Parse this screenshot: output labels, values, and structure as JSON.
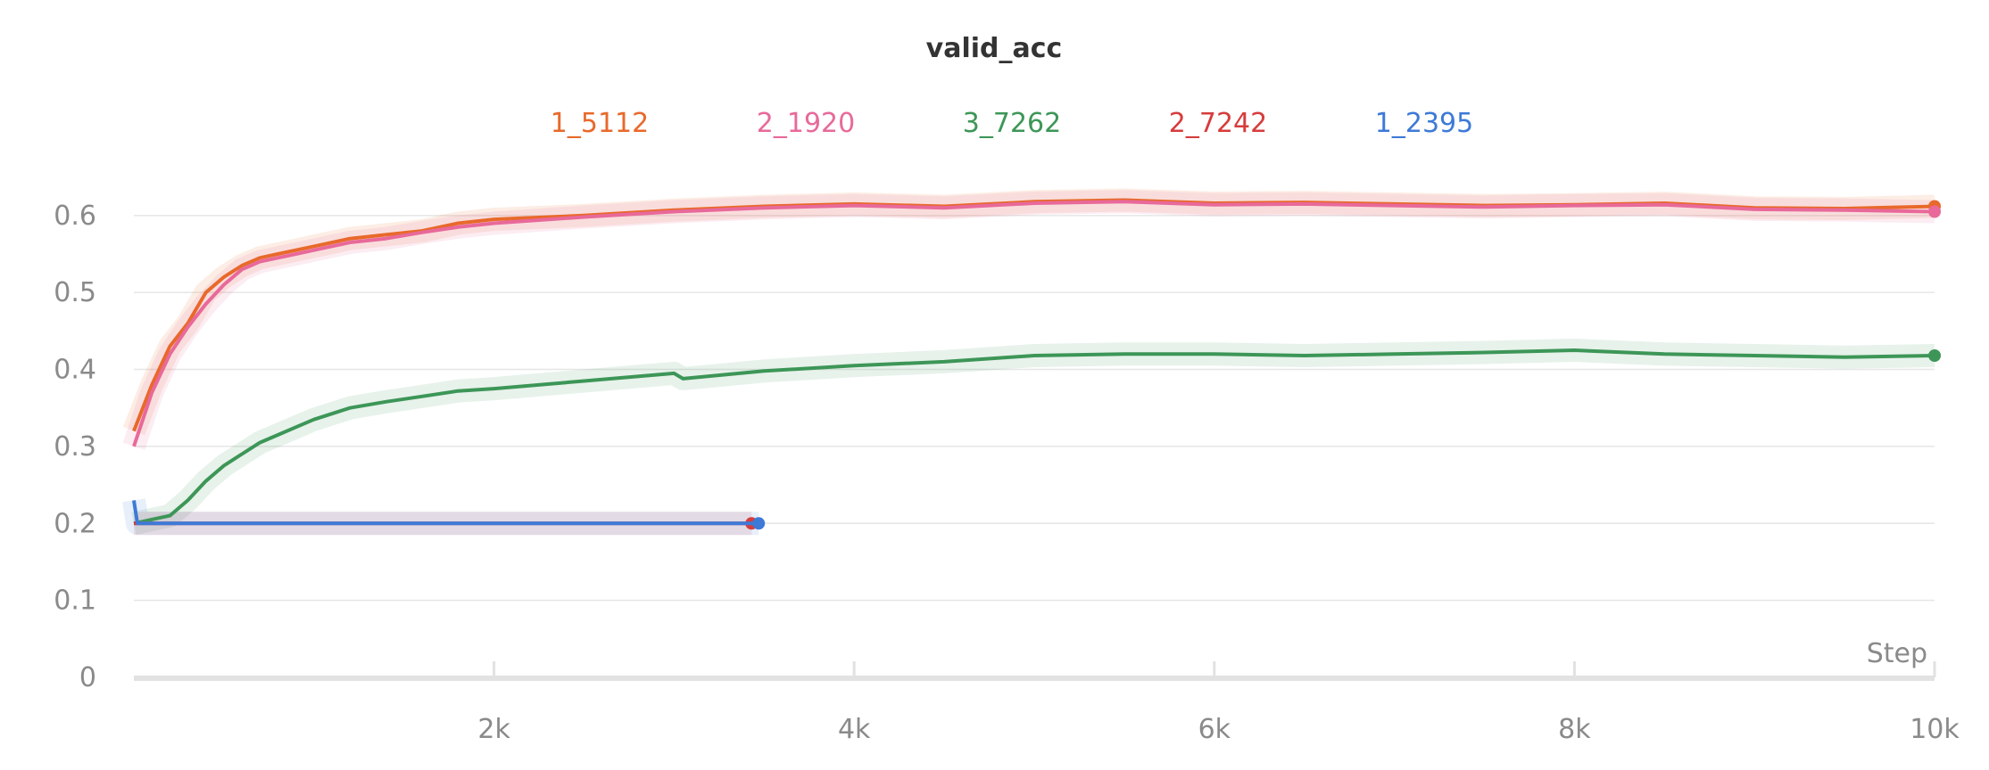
{
  "chart_data": {
    "type": "line",
    "title": "valid_acc",
    "xlabel": "Step",
    "ylabel": "",
    "xlim": [
      0,
      10000
    ],
    "ylim": [
      0,
      0.66
    ],
    "x_ticks": [
      2000,
      4000,
      6000,
      8000,
      10000
    ],
    "x_tick_labels": [
      "2k",
      "4k",
      "6k",
      "8k",
      "10k"
    ],
    "y_ticks": [
      0,
      0.1,
      0.2,
      0.3,
      0.4,
      0.5,
      0.6
    ],
    "y_tick_labels": [
      "0",
      "0.1",
      "0.2",
      "0.3",
      "0.4",
      "0.5",
      "0.6"
    ],
    "grid": true,
    "legend_position": "top",
    "series": [
      {
        "name": "1_5112",
        "color": "#e8692b",
        "x": [
          0,
          100,
          200,
          300,
          400,
          500,
          600,
          700,
          800,
          900,
          1000,
          1200,
          1400,
          1600,
          1800,
          2000,
          2500,
          3000,
          3500,
          4000,
          4500,
          5000,
          5500,
          6000,
          6500,
          7000,
          7500,
          8000,
          8500,
          9000,
          9500,
          10000
        ],
        "values": [
          0.32,
          0.38,
          0.43,
          0.46,
          0.5,
          0.52,
          0.535,
          0.545,
          0.55,
          0.555,
          0.56,
          0.57,
          0.575,
          0.58,
          0.59,
          0.595,
          0.6,
          0.607,
          0.612,
          0.615,
          0.612,
          0.618,
          0.62,
          0.616,
          0.617,
          0.615,
          0.613,
          0.614,
          0.616,
          0.61,
          0.609,
          0.612
        ]
      },
      {
        "name": "2_1920",
        "color": "#e8699a",
        "x": [
          0,
          100,
          200,
          300,
          400,
          500,
          600,
          700,
          800,
          900,
          1000,
          1200,
          1400,
          1600,
          1800,
          2000,
          2500,
          3000,
          3500,
          4000,
          4500,
          5000,
          5500,
          6000,
          6500,
          7000,
          7500,
          8000,
          8500,
          9000,
          9500,
          10000
        ],
        "values": [
          0.3,
          0.37,
          0.42,
          0.455,
          0.485,
          0.51,
          0.53,
          0.54,
          0.545,
          0.55,
          0.555,
          0.565,
          0.57,
          0.578,
          0.585,
          0.59,
          0.598,
          0.605,
          0.61,
          0.613,
          0.61,
          0.616,
          0.618,
          0.614,
          0.615,
          0.613,
          0.611,
          0.613,
          0.614,
          0.608,
          0.607,
          0.605
        ]
      },
      {
        "name": "3_7262",
        "color": "#3d9657",
        "x": [
          0,
          200,
          300,
          400,
          500,
          600,
          700,
          800,
          900,
          1000,
          1200,
          1400,
          1600,
          1800,
          2000,
          2500,
          3000,
          3050,
          3500,
          4000,
          4500,
          5000,
          5500,
          6000,
          6500,
          7000,
          7500,
          8000,
          8500,
          9000,
          9500,
          10000
        ],
        "values": [
          0.2,
          0.21,
          0.23,
          0.255,
          0.275,
          0.29,
          0.305,
          0.315,
          0.325,
          0.335,
          0.35,
          0.358,
          0.365,
          0.372,
          0.375,
          0.385,
          0.395,
          0.388,
          0.398,
          0.405,
          0.41,
          0.418,
          0.42,
          0.42,
          0.418,
          0.42,
          0.422,
          0.425,
          0.42,
          0.418,
          0.416,
          0.418
        ]
      },
      {
        "name": "2_7242",
        "color": "#d73c3c",
        "x": [
          0,
          500,
          1000,
          1500,
          2000,
          2500,
          3000,
          3430
        ],
        "values": [
          0.2,
          0.2,
          0.2,
          0.2,
          0.2,
          0.2,
          0.2,
          0.2
        ]
      },
      {
        "name": "1_2395",
        "color": "#3d7ad7",
        "x": [
          0,
          20,
          3470
        ],
        "values": [
          0.23,
          0.2,
          0.2
        ]
      }
    ]
  }
}
